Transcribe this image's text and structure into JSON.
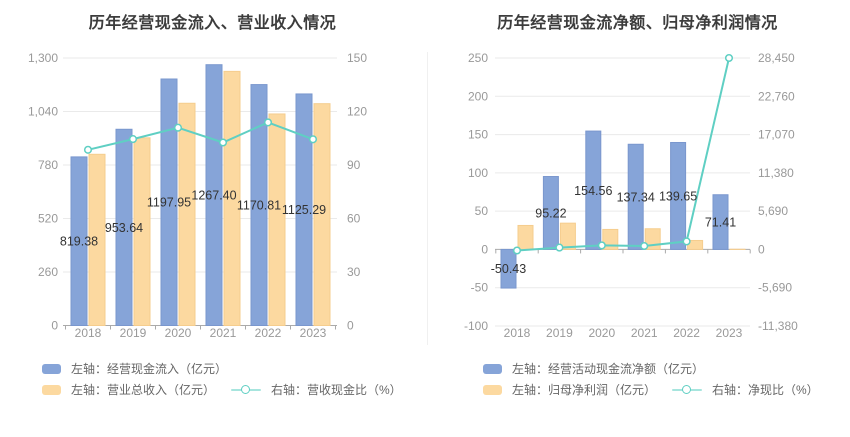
{
  "page": {
    "background": "#ffffff"
  },
  "style": {
    "bar_blue": "#86A4D8",
    "bar_blue_border": "#7A97CE",
    "bar_orange": "#FCD9A0",
    "bar_orange_border": "#F5CD8E",
    "line_teal": "#5FCFC3",
    "gridline": "#EAEAEA",
    "axis_line": "#AAAAAA",
    "tick_text": "#999999",
    "value_label_text": "#333333",
    "title_text": "#3C3C3C",
    "legend_text": "#666666"
  },
  "chart_data": [
    {
      "type": "bar+line",
      "title": "历年经营现金流入、营业收入情况",
      "categories": [
        "2018",
        "2019",
        "2020",
        "2021",
        "2022",
        "2023"
      ],
      "series": [
        {
          "name": "左轴：经营现金流入（亿元）",
          "type": "bar",
          "axis": "left",
          "color": "#86A4D8",
          "border": "#7A97CE",
          "values": [
            819.38,
            953.64,
            1197.95,
            1267.4,
            1170.81,
            1125.29
          ]
        },
        {
          "name": "左轴：营业总收入（亿元）",
          "type": "bar",
          "axis": "left",
          "color": "#FCD9A0",
          "border": "#F5CD8E",
          "values": [
            832,
            912,
            1080,
            1235,
            1028,
            1078
          ]
        },
        {
          "name": "右轴：营收现金比（%）",
          "type": "line",
          "axis": "right",
          "color": "#5FCFC3",
          "values": [
            98.5,
            104.5,
            110.9,
            102.6,
            113.9,
            104.4
          ]
        }
      ],
      "value_labels": [
        "819.38",
        "953.64",
        "1197.95",
        "1267.40",
        "1170.81",
        "1125.29"
      ],
      "left_axis": {
        "min": 0,
        "max": 1300,
        "ticks": [
          "1,300",
          "1,040",
          "780",
          "520",
          "260",
          "0"
        ]
      },
      "right_axis": {
        "min": 0,
        "max": 150,
        "ticks": [
          "150",
          "120",
          "90",
          "60",
          "30",
          "0"
        ]
      },
      "grid": true,
      "legend_position": "bottom"
    },
    {
      "type": "bar+line",
      "title": "历年经营现金流净额、归母净利润情况",
      "categories": [
        "2018",
        "2019",
        "2020",
        "2021",
        "2022",
        "2023"
      ],
      "series": [
        {
          "name": "左轴：经营活动现金流净额（亿元）",
          "type": "bar",
          "axis": "left",
          "color": "#86A4D8",
          "border": "#7A97CE",
          "values": [
            -50.43,
            95.22,
            154.56,
            137.34,
            139.65,
            71.41
          ]
        },
        {
          "name": "左轴：归母净利润（亿元）",
          "type": "bar",
          "axis": "left",
          "color": "#FCD9A0",
          "border": "#F5CD8E",
          "values": [
            31.3,
            34.3,
            26.1,
            27.0,
            11.7,
            0.25
          ]
        },
        {
          "name": "右轴：净现比（%）",
          "type": "line",
          "axis": "right",
          "color": "#5FCFC3",
          "values": [
            -161,
            278,
            592,
            509,
            1194,
            28450
          ]
        }
      ],
      "value_labels": [
        "-50.43",
        "95.22",
        "154.56",
        "137.34",
        "139.65",
        "71.41"
      ],
      "left_axis": {
        "min": -100,
        "max": 250,
        "ticks": [
          "250",
          "200",
          "150",
          "100",
          "50",
          "0",
          "-50",
          "-100"
        ]
      },
      "right_axis": {
        "min": -11380,
        "max": 28450,
        "ticks": [
          "28,450",
          "22,760",
          "17,070",
          "11,380",
          "5,690",
          "0",
          "-5,690",
          "-11,380"
        ]
      },
      "grid": true,
      "legend_position": "bottom"
    }
  ]
}
